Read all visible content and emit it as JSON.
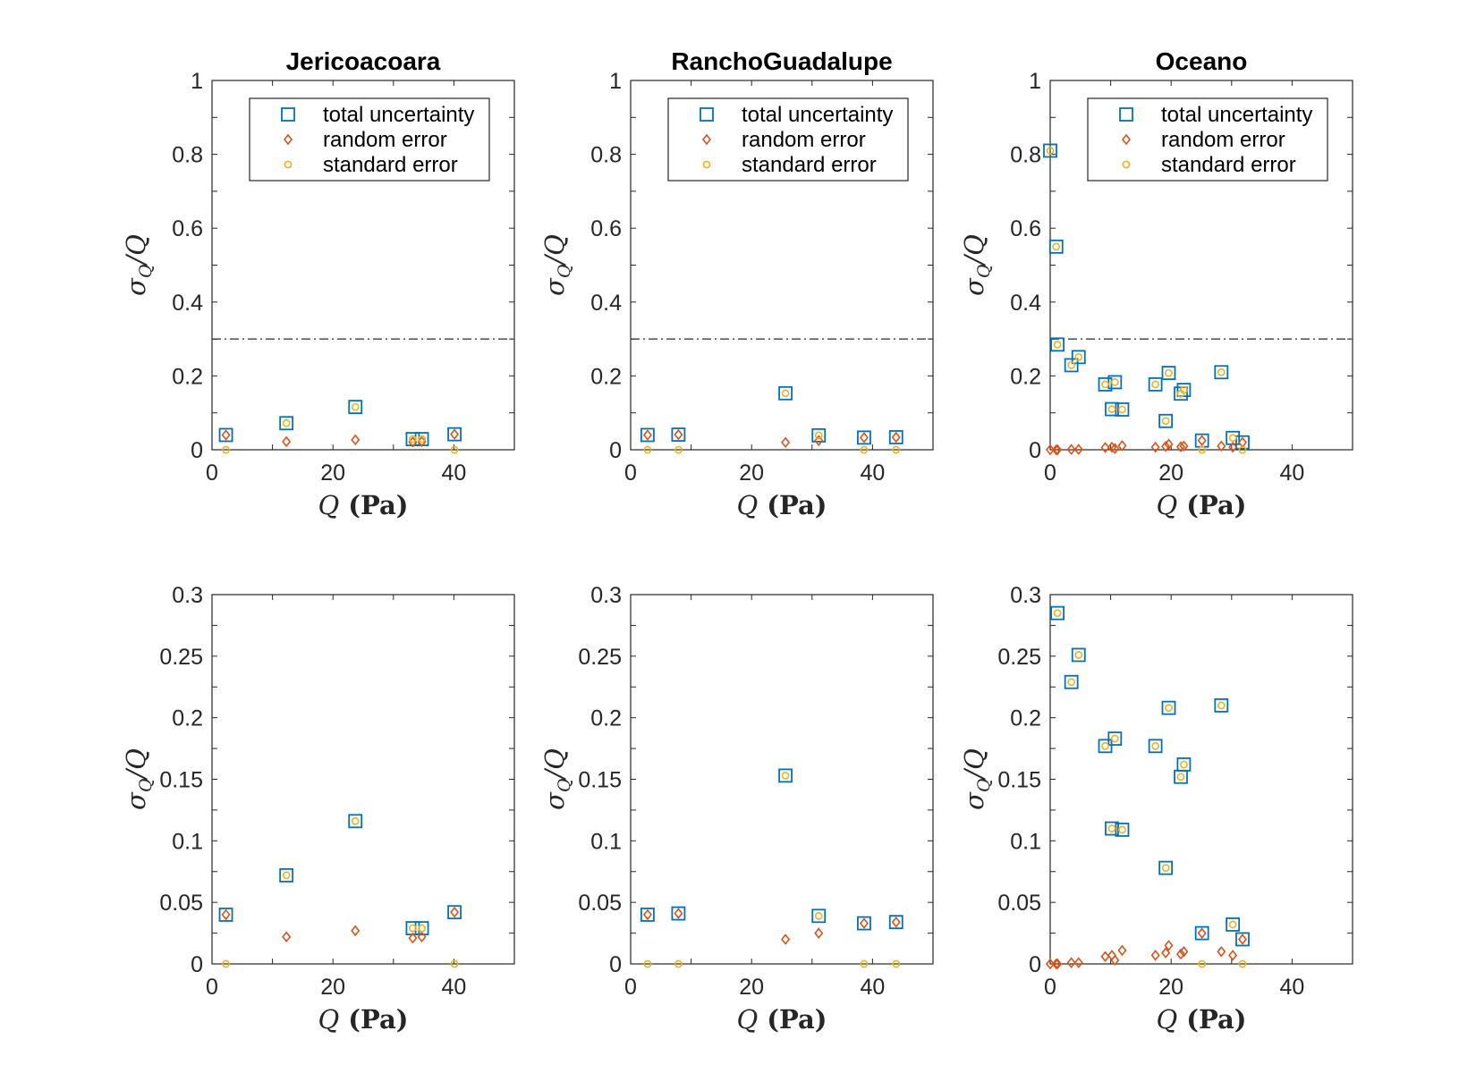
{
  "colors": {
    "total": "#0072BD",
    "random": "#D95319",
    "standard": "#EDB120",
    "axis": "#262626"
  },
  "legend": {
    "total": "total uncertainty",
    "random": "random error",
    "standard": "standard error"
  },
  "xlabel_var": "Q",
  "xlabel_unit": "(Pa)",
  "ylabel_num": "σ",
  "ylabel_sub": "Q",
  "ylabel_den": "/Q",
  "chart_data": [
    {
      "type": "scatter",
      "title": "Jericoacoara",
      "xlim": [
        0,
        50
      ],
      "ylim": [
        0,
        1
      ],
      "xticks": [
        0,
        20,
        40
      ],
      "yticks": [
        0,
        0.2,
        0.4,
        0.6,
        0.8,
        1
      ],
      "ytick_labels": [
        "0",
        "0.2",
        "0.4",
        "0.6",
        "0.8",
        "1"
      ],
      "reference_line_y": 0.3,
      "legend": "top-right",
      "x": [
        2.3,
        12.3,
        23.7,
        33.2,
        34.7,
        40.1
      ],
      "series": [
        {
          "name": "total uncertainty",
          "marker": "square",
          "values": [
            0.04,
            0.072,
            0.116,
            0.029,
            0.029,
            0.042
          ]
        },
        {
          "name": "random error",
          "marker": "diamond",
          "values": [
            0.04,
            0.022,
            0.027,
            0.021,
            0.022,
            0.042
          ]
        },
        {
          "name": "standard error",
          "marker": "circle",
          "values": [
            0.0,
            0.072,
            0.116,
            0.029,
            0.029,
            0.0
          ]
        }
      ]
    },
    {
      "type": "scatter",
      "title": "RanchoGuadalupe",
      "xlim": [
        0,
        50
      ],
      "ylim": [
        0,
        1
      ],
      "xticks": [
        0,
        20,
        40
      ],
      "yticks": [
        0,
        0.2,
        0.4,
        0.6,
        0.8,
        1
      ],
      "ytick_labels": [
        "0",
        "0.2",
        "0.4",
        "0.6",
        "0.8",
        "1"
      ],
      "reference_line_y": 0.3,
      "legend": "top-right",
      "x": [
        2.8,
        7.9,
        25.6,
        31.1,
        38.6,
        43.9
      ],
      "series": [
        {
          "name": "total uncertainty",
          "marker": "square",
          "values": [
            0.04,
            0.041,
            0.153,
            0.039,
            0.033,
            0.034
          ]
        },
        {
          "name": "random error",
          "marker": "diamond",
          "values": [
            0.04,
            0.041,
            0.02,
            0.025,
            0.033,
            0.034
          ]
        },
        {
          "name": "standard error",
          "marker": "circle",
          "values": [
            0.0,
            0.0,
            0.153,
            0.039,
            0.0,
            0.0
          ]
        }
      ]
    },
    {
      "type": "scatter",
      "title": "Oceano",
      "xlim": [
        0,
        50
      ],
      "ylim": [
        0,
        1
      ],
      "xticks": [
        0,
        20,
        40
      ],
      "yticks": [
        0,
        0.2,
        0.4,
        0.6,
        0.8,
        1
      ],
      "ytick_labels": [
        "0",
        "0.2",
        "0.4",
        "0.6",
        "0.8",
        "1"
      ],
      "reference_line_y": 0.3,
      "legend": "top-right",
      "x": [
        0.0,
        1.0,
        1.2,
        3.5,
        4.7,
        9.1,
        10.2,
        10.7,
        11.9,
        17.4,
        19.1,
        19.6,
        21.6,
        22.1,
        25.1,
        28.3,
        30.2,
        31.8
      ],
      "series": [
        {
          "name": "total uncertainty",
          "marker": "square",
          "values": [
            0.81,
            0.55,
            0.285,
            0.229,
            0.251,
            0.177,
            0.11,
            0.183,
            0.109,
            0.177,
            0.078,
            0.208,
            0.152,
            0.162,
            0.025,
            0.21,
            0.032,
            0.02
          ]
        },
        {
          "name": "random error",
          "marker": "diamond",
          "values": [
            0.0,
            0.0,
            0.0,
            0.001,
            0.001,
            0.006,
            0.007,
            0.003,
            0.011,
            0.007,
            0.009,
            0.015,
            0.008,
            0.01,
            0.025,
            0.01,
            0.007,
            0.02
          ]
        },
        {
          "name": "standard error",
          "marker": "circle",
          "values": [
            0.81,
            0.55,
            0.285,
            0.229,
            0.251,
            0.177,
            0.11,
            0.183,
            0.109,
            0.177,
            0.078,
            0.208,
            0.152,
            0.162,
            0.0,
            0.21,
            0.032,
            0.0
          ]
        }
      ]
    },
    {
      "type": "scatter",
      "title": "",
      "xlim": [
        0,
        50
      ],
      "ylim": [
        0,
        0.3
      ],
      "xticks": [
        0,
        20,
        40
      ],
      "yticks": [
        0,
        0.05,
        0.1,
        0.15,
        0.2,
        0.25,
        0.3
      ],
      "ytick_labels": [
        "0",
        "0.05",
        "0.1",
        "0.15",
        "0.2",
        "0.25",
        "0.3"
      ],
      "x": [
        2.3,
        12.3,
        23.7,
        33.2,
        34.7,
        40.1
      ],
      "series": [
        {
          "name": "total uncertainty",
          "marker": "square",
          "values": [
            0.04,
            0.072,
            0.116,
            0.029,
            0.029,
            0.042
          ]
        },
        {
          "name": "random error",
          "marker": "diamond",
          "values": [
            0.04,
            0.022,
            0.027,
            0.021,
            0.022,
            0.042
          ]
        },
        {
          "name": "standard error",
          "marker": "circle",
          "values": [
            0.0,
            0.072,
            0.116,
            0.029,
            0.029,
            0.0
          ]
        }
      ]
    },
    {
      "type": "scatter",
      "title": "",
      "xlim": [
        0,
        50
      ],
      "ylim": [
        0,
        0.3
      ],
      "xticks": [
        0,
        20,
        40
      ],
      "yticks": [
        0,
        0.05,
        0.1,
        0.15,
        0.2,
        0.25,
        0.3
      ],
      "ytick_labels": [
        "0",
        "0.05",
        "0.1",
        "0.15",
        "0.2",
        "0.25",
        "0.3"
      ],
      "x": [
        2.8,
        7.9,
        25.6,
        31.1,
        38.6,
        43.9
      ],
      "series": [
        {
          "name": "total uncertainty",
          "marker": "square",
          "values": [
            0.04,
            0.041,
            0.153,
            0.039,
            0.033,
            0.034
          ]
        },
        {
          "name": "random error",
          "marker": "diamond",
          "values": [
            0.04,
            0.041,
            0.02,
            0.025,
            0.033,
            0.034
          ]
        },
        {
          "name": "standard error",
          "marker": "circle",
          "values": [
            0.0,
            0.0,
            0.153,
            0.039,
            0.0,
            0.0
          ]
        }
      ]
    },
    {
      "type": "scatter",
      "title": "",
      "xlim": [
        0,
        50
      ],
      "ylim": [
        0,
        0.3
      ],
      "xticks": [
        0,
        20,
        40
      ],
      "yticks": [
        0,
        0.05,
        0.1,
        0.15,
        0.2,
        0.25,
        0.3
      ],
      "ytick_labels": [
        "0",
        "0.05",
        "0.1",
        "0.15",
        "0.2",
        "0.25",
        "0.3"
      ],
      "x": [
        0.0,
        1.0,
        1.2,
        3.5,
        4.7,
        9.1,
        10.2,
        10.7,
        11.9,
        17.4,
        19.1,
        19.6,
        21.6,
        22.1,
        25.1,
        28.3,
        30.2,
        31.8
      ],
      "series": [
        {
          "name": "total uncertainty",
          "marker": "square",
          "values": [
            null,
            null,
            0.285,
            0.229,
            0.251,
            0.177,
            0.11,
            0.183,
            0.109,
            0.177,
            0.078,
            0.208,
            0.152,
            0.162,
            0.025,
            0.21,
            0.032,
            0.02
          ]
        },
        {
          "name": "random error",
          "marker": "diamond",
          "values": [
            0.0,
            0.0,
            0.0,
            0.001,
            0.001,
            0.006,
            0.007,
            0.003,
            0.011,
            0.007,
            0.009,
            0.015,
            0.008,
            0.01,
            0.025,
            0.01,
            0.007,
            0.02
          ]
        },
        {
          "name": "standard error",
          "marker": "circle",
          "values": [
            null,
            null,
            0.285,
            0.229,
            0.251,
            0.177,
            0.11,
            0.183,
            0.109,
            0.177,
            0.078,
            0.208,
            0.152,
            0.162,
            0.0,
            0.21,
            0.032,
            0.0
          ]
        }
      ]
    }
  ]
}
